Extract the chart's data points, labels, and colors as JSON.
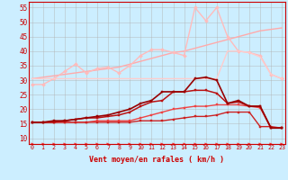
{
  "xlabel": "Vent moyen/en rafales ( km/h )",
  "background_color": "#cceeff",
  "grid_color": "#b0b0b0",
  "xmin": 0,
  "xmax": 23,
  "ymin": 8,
  "ymax": 57,
  "yticks": [
    10,
    15,
    20,
    25,
    30,
    35,
    40,
    45,
    50,
    55
  ],
  "xticks": [
    0,
    1,
    2,
    3,
    4,
    5,
    6,
    7,
    8,
    9,
    10,
    11,
    12,
    13,
    14,
    15,
    16,
    17,
    18,
    19,
    20,
    21,
    22,
    23
  ],
  "series": [
    {
      "color": "#ffaaaa",
      "linewidth": 1.0,
      "marker": null,
      "markersize": 0,
      "y": [
        30.5,
        31.0,
        31.5,
        32.0,
        32.5,
        33.0,
        33.5,
        34.0,
        34.5,
        35.5,
        36.5,
        37.5,
        38.5,
        39.5,
        40.0,
        41.0,
        42.0,
        43.0,
        44.0,
        45.0,
        46.0,
        47.0,
        47.5,
        48.0
      ]
    },
    {
      "color": "#ffbbbb",
      "linewidth": 1.0,
      "marker": "D",
      "markersize": 2.0,
      "y": [
        28.5,
        28.5,
        30.5,
        33.0,
        35.5,
        32.5,
        34.0,
        34.5,
        32.5,
        35.0,
        38.5,
        40.5,
        40.5,
        39.5,
        38.5,
        55.0,
        50.5,
        55.0,
        45.0,
        40.0,
        39.5,
        38.5,
        32.0,
        30.5
      ]
    },
    {
      "color": "#ffcccc",
      "linewidth": 1.0,
      "marker": null,
      "markersize": 0,
      "y": [
        30.5,
        30.5,
        30.5,
        30.5,
        30.5,
        30.5,
        30.5,
        30.5,
        30.5,
        30.5,
        30.5,
        30.5,
        30.5,
        30.5,
        30.5,
        30.5,
        30.5,
        30.5,
        40.0,
        40.0,
        39.5,
        38.0,
        32.0,
        30.5
      ]
    },
    {
      "color": "#ee4444",
      "linewidth": 1.0,
      "marker": "s",
      "markersize": 2.0,
      "y": [
        15.5,
        15.5,
        15.5,
        15.5,
        15.5,
        15.5,
        16.0,
        16.0,
        16.0,
        16.0,
        17.0,
        18.0,
        19.0,
        20.0,
        20.5,
        21.0,
        21.0,
        21.5,
        21.5,
        21.5,
        21.0,
        20.5,
        13.5,
        13.5
      ]
    },
    {
      "color": "#cc2222",
      "linewidth": 1.0,
      "marker": "s",
      "markersize": 2.0,
      "y": [
        15.5,
        15.5,
        15.5,
        15.5,
        15.5,
        15.5,
        15.5,
        15.5,
        15.5,
        15.5,
        16.0,
        16.0,
        16.0,
        16.5,
        17.0,
        17.5,
        17.5,
        18.0,
        19.0,
        19.0,
        19.0,
        14.0,
        14.0,
        13.5
      ]
    },
    {
      "color": "#bb1111",
      "linewidth": 1.1,
      "marker": "s",
      "markersize": 2.0,
      "y": [
        15.5,
        15.5,
        15.5,
        16.0,
        16.5,
        17.0,
        17.0,
        17.5,
        18.0,
        19.0,
        21.0,
        22.5,
        23.0,
        26.0,
        26.0,
        26.5,
        26.5,
        25.5,
        22.0,
        22.5,
        21.0,
        21.0,
        13.5,
        13.5
      ]
    },
    {
      "color": "#990000",
      "linewidth": 1.2,
      "marker": "s",
      "markersize": 2.0,
      "y": [
        15.5,
        15.5,
        16.0,
        16.0,
        16.5,
        17.0,
        17.5,
        18.0,
        19.0,
        20.0,
        22.0,
        23.0,
        26.0,
        26.0,
        26.0,
        30.5,
        31.0,
        30.0,
        22.0,
        23.0,
        21.0,
        21.0,
        13.5,
        13.5
      ]
    },
    {
      "color": "#ff2222",
      "linewidth": 0.8,
      "marker": ">",
      "markersize": 2.5,
      "y": [
        8.0,
        8.0,
        8.0,
        8.0,
        8.0,
        8.0,
        8.0,
        8.0,
        8.0,
        8.0,
        8.0,
        8.0,
        8.0,
        8.0,
        8.0,
        8.0,
        8.0,
        8.0,
        8.0,
        8.0,
        8.0,
        8.0,
        8.0,
        8.0
      ]
    }
  ]
}
